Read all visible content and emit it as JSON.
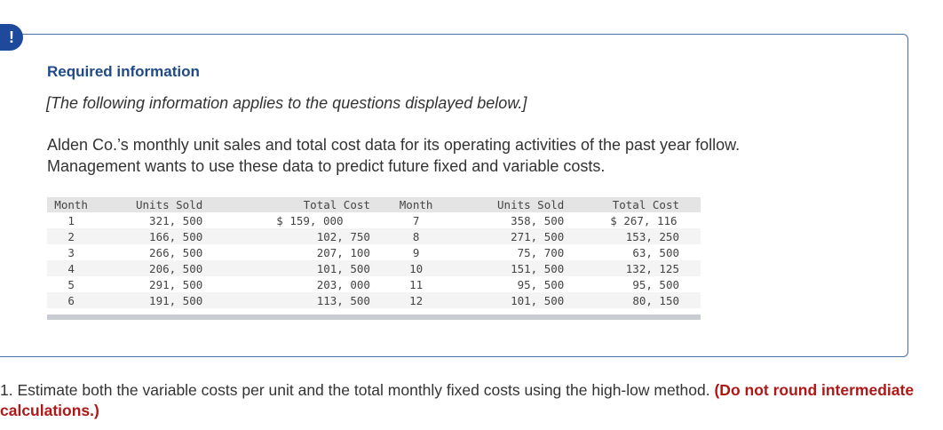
{
  "alert": {
    "symbol": "!"
  },
  "heading": "Required information",
  "subheading": "[The following information applies to the questions displayed below.]",
  "intro_line1": "Alden Co.’s monthly unit sales and total cost data for its operating activities of the past year follow.",
  "intro_line2": "Management wants to use these data to predict future fixed and variable costs.",
  "table": {
    "headers": [
      "Month",
      "Units Sold",
      "Total Cost",
      "Month",
      "Units Sold",
      "Total Cost"
    ],
    "rows": [
      [
        "1",
        "321, 500",
        "$ 159, 000",
        "7",
        "358, 500",
        "$ 267, 116"
      ],
      [
        "2",
        "166, 500",
        "102, 750",
        "8",
        "271, 500",
        "153, 250"
      ],
      [
        "3",
        "266, 500",
        "207, 100",
        "9",
        "75, 700",
        "63, 500"
      ],
      [
        "4",
        "206, 500",
        "101, 500",
        "10",
        "151, 500",
        "132, 125"
      ],
      [
        "5",
        "291, 500",
        "203, 000",
        "11",
        "95, 500",
        "95, 500"
      ],
      [
        "6",
        "191, 500",
        "113, 500",
        "12",
        "101, 500",
        "80, 150"
      ]
    ]
  },
  "question": {
    "text": "1. Estimate both the variable costs per unit and the total monthly fixed costs using the high-low method.",
    "instruction": "(Do not round intermediate calculations.)"
  }
}
